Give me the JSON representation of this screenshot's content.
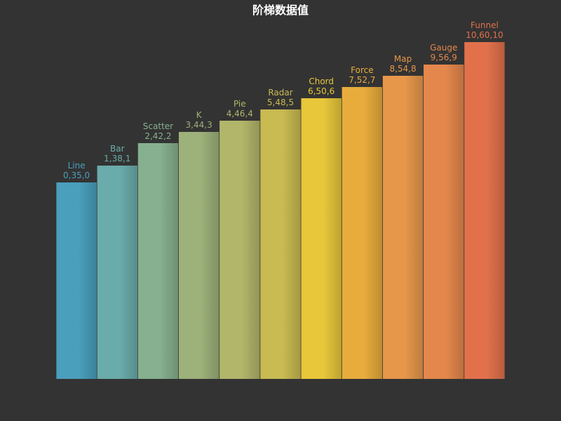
{
  "chart_data": {
    "type": "bar",
    "title": "阶梯数据值",
    "categories": [
      "Line",
      "Bar",
      "Scatter",
      "K",
      "Pie",
      "Radar",
      "Chord",
      "Force",
      "Map",
      "Gauge",
      "Funnel"
    ],
    "values": [
      35,
      38,
      42,
      44,
      46,
      48,
      50,
      52,
      54,
      56,
      60
    ],
    "labels": [
      "0,35,0",
      "1,38,1",
      "2,42,2",
      "3,44,3",
      "4,46,4",
      "5,48,5",
      "6,50,6",
      "7,52,7",
      "8,54,8",
      "9,56,9",
      "10,60,10"
    ],
    "colors": [
      "#4a9fbd",
      "#6aacab",
      "#86b08f",
      "#9db17a",
      "#b2b66a",
      "#c9bb52",
      "#e8c73a",
      "#e8ac3d",
      "#e6974a",
      "#e4874c",
      "#e2714b"
    ],
    "ylim": [
      0,
      60
    ],
    "grid": false,
    "xlabel": "",
    "ylabel": ""
  }
}
